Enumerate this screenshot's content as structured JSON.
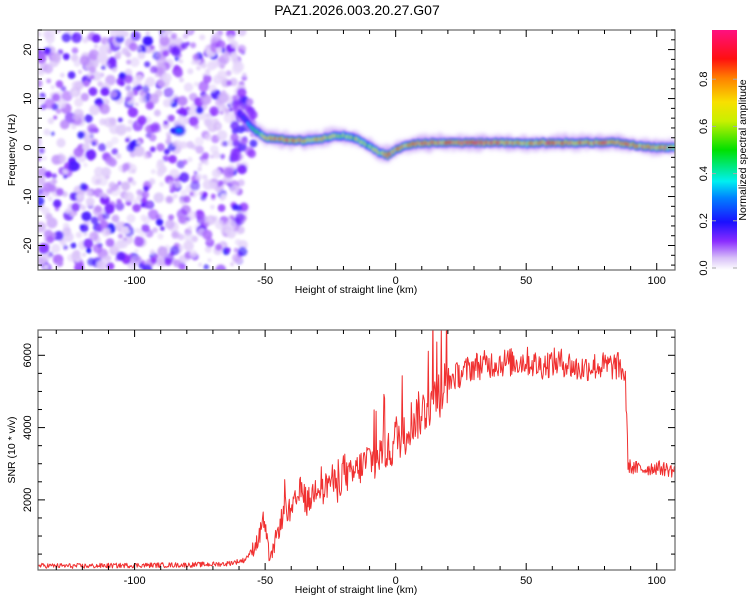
{
  "title": "PAZ1.2026.003.20.27.G07",
  "colors": {
    "snr_line": "#f03030",
    "axis": "#000000",
    "frame": "#666666"
  },
  "chart_data": [
    {
      "type": "heatmap",
      "title": "PAZ1.2026.003.20.27.G07",
      "xlabel": "Height of straight line (km)",
      "ylabel": "Frequency (Hz)",
      "xlim": [
        -137,
        107
      ],
      "ylim": [
        -25,
        24
      ],
      "xticks": [
        -100,
        -50,
        0,
        50,
        100
      ],
      "xtick_labels": [
        "-100",
        "-50",
        "0",
        "50",
        "100"
      ],
      "yticks": [
        -20,
        -10,
        0,
        10,
        20
      ],
      "ytick_labels": [
        "-20",
        "-10",
        "0",
        "10",
        "20"
      ],
      "colorbar": {
        "label": "Normalized spectral amplitude",
        "range": [
          0,
          1
        ],
        "ticks": [
          0.0,
          0.2,
          0.4,
          0.6,
          0.8
        ],
        "tick_labels": [
          "0.0",
          "0.2",
          "0.4",
          "0.6",
          "0.8"
        ],
        "colormap": "rainbow (white-violet-blue-cyan-green-yellow-red-magenta)"
      },
      "noise_region": {
        "x_range": [
          -137,
          -60
        ],
        "description": "scattered low-amplitude speckle across all frequencies"
      },
      "ridge": {
        "x": [
          -60,
          -57,
          -55,
          -52,
          -50,
          -45,
          -40,
          -35,
          -30,
          -25,
          -20,
          -15,
          -10,
          -7,
          -5,
          -3,
          0,
          5,
          10,
          15,
          20,
          25,
          30,
          35,
          40,
          45,
          50,
          55,
          60,
          65,
          70,
          75,
          80,
          85,
          90,
          95,
          100,
          107
        ],
        "freq_hz": [
          7,
          5.5,
          4,
          2.8,
          2,
          1.8,
          1.5,
          1.4,
          1.6,
          2.2,
          2.4,
          1.8,
          0.2,
          -0.8,
          -1.2,
          -1.6,
          -0.5,
          0.6,
          0.9,
          1.0,
          1.0,
          1.0,
          1.0,
          1.0,
          1.0,
          1.0,
          0.8,
          1.0,
          1.0,
          1.0,
          1.0,
          1.0,
          1.0,
          1.0,
          0.6,
          0.2,
          0.0,
          0.0
        ],
        "peak_amplitude": [
          0.2,
          0.3,
          0.45,
          0.6,
          0.7,
          0.85,
          0.9,
          0.85,
          0.75,
          0.7,
          0.65,
          0.7,
          0.6,
          0.8,
          0.75,
          0.85,
          0.8,
          0.85,
          0.9,
          0.9,
          0.9,
          0.95,
          0.95,
          0.95,
          0.9,
          0.85,
          0.8,
          0.85,
          0.9,
          0.9,
          0.85,
          0.85,
          0.9,
          0.85,
          0.9,
          0.85,
          0.8,
          0.75
        ]
      }
    },
    {
      "type": "line",
      "xlabel": "Height of straight line (km)",
      "ylabel": "SNR (10 * v/v)",
      "xlim": [
        -137,
        107
      ],
      "ylim": [
        60,
        6700
      ],
      "xticks": [
        -100,
        -50,
        0,
        50,
        100
      ],
      "xtick_labels": [
        "-100",
        "-50",
        "0",
        "50",
        "100"
      ],
      "yticks": [
        2000,
        4000,
        6000
      ],
      "ytick_labels": [
        "2000",
        "4000",
        "6000"
      ],
      "series": [
        {
          "name": "SNR",
          "x": [
            -137,
            -120,
            -100,
            -80,
            -65,
            -58,
            -55,
            -52,
            -51,
            -50,
            -49,
            -48,
            -46,
            -44,
            -42,
            -40,
            -38,
            -36,
            -34,
            -32,
            -30,
            -28,
            -25,
            -22,
            -20,
            -18,
            -15,
            -12,
            -10,
            -8,
            -5,
            -2,
            0,
            3,
            5,
            8,
            10,
            13,
            15,
            18,
            20,
            25,
            30,
            35,
            40,
            45,
            50,
            55,
            60,
            65,
            70,
            75,
            80,
            85,
            87,
            88,
            89,
            90,
            95,
            100,
            107
          ],
          "y": [
            180,
            170,
            190,
            200,
            230,
            330,
            600,
            1000,
            1600,
            1200,
            700,
            300,
            900,
            1400,
            1800,
            1600,
            2000,
            2300,
            1900,
            2100,
            2500,
            2200,
            2600,
            2300,
            2900,
            2600,
            2800,
            3000,
            3200,
            3000,
            3400,
            3300,
            3800,
            3700,
            4100,
            4300,
            4400,
            4700,
            4900,
            5100,
            5300,
            5500,
            5700,
            5750,
            5800,
            5800,
            5850,
            5700,
            5800,
            5800,
            5600,
            5700,
            5700,
            5700,
            5600,
            5300,
            3000,
            2900,
            2850,
            2900,
            2800
          ]
        }
      ]
    }
  ]
}
